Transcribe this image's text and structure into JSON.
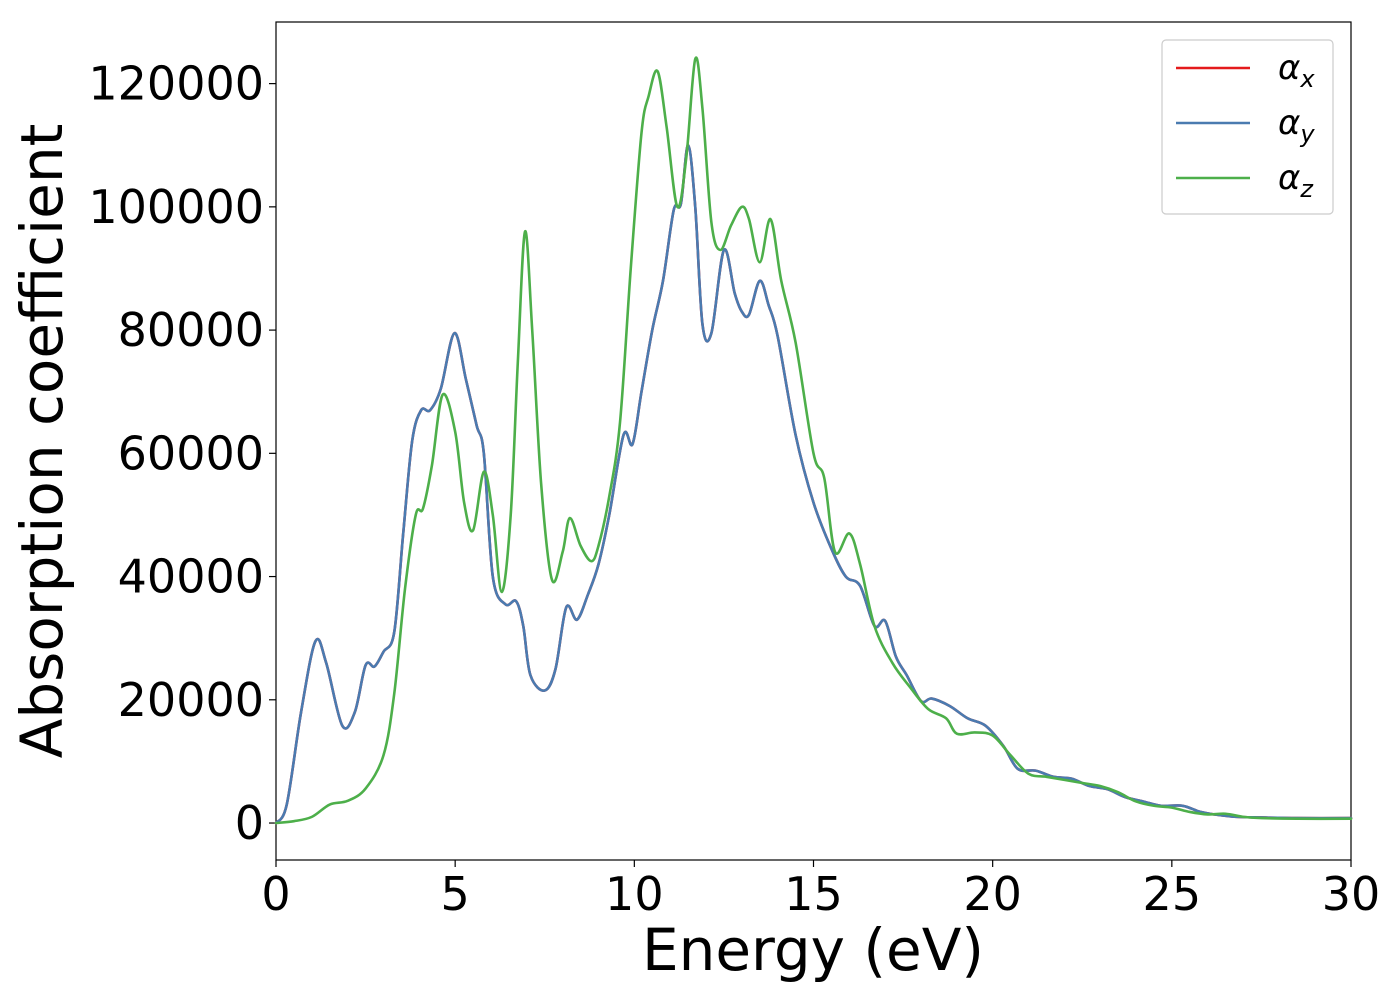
{
  "chart_data": {
    "type": "line",
    "title": "",
    "xlabel": "Energy (eV)",
    "ylabel": "Absorption coefficient",
    "xlim": [
      0,
      30
    ],
    "ylim": [
      -6000,
      130000
    ],
    "xticks": [
      0,
      5,
      10,
      15,
      20,
      25,
      30
    ],
    "yticks": [
      0,
      20000,
      40000,
      60000,
      80000,
      100000,
      120000
    ],
    "grid": false,
    "legend_position": "top-right",
    "series": [
      {
        "name": "α",
        "subscript": "x",
        "color": "#e41a1c",
        "x": [
          0,
          0.3,
          0.7,
          1.1,
          1.4,
          1.85,
          2.2,
          2.5,
          2.75,
          3.0,
          3.3,
          3.55,
          3.8,
          4.05,
          4.3,
          4.6,
          4.98,
          5.3,
          5.6,
          5.8,
          6.05,
          6.4,
          6.7,
          6.9,
          7.1,
          7.5,
          7.8,
          8.1,
          8.4,
          8.7,
          9.0,
          9.3,
          9.7,
          9.95,
          10.2,
          10.5,
          10.8,
          11.1,
          11.3,
          11.5,
          11.7,
          11.9,
          12.15,
          12.5,
          12.8,
          13.0,
          13.2,
          13.5,
          13.75,
          14.0,
          14.5,
          15.0,
          15.5,
          15.9,
          16.3,
          16.7,
          17.0,
          17.3,
          17.6,
          18.0,
          18.3,
          18.8,
          19.3,
          19.8,
          20.3,
          20.7,
          21.2,
          21.7,
          22.2,
          22.7,
          23.2,
          23.7,
          24.2,
          24.7,
          25.3,
          25.8,
          26.3,
          26.8,
          27.5,
          28.5,
          30.0
        ],
        "values": [
          0,
          3000,
          18000,
          29500,
          26000,
          15800,
          18000,
          25600,
          25400,
          27800,
          31000,
          47000,
          62000,
          67000,
          67000,
          70500,
          79500,
          72000,
          64500,
          60000,
          40000,
          35500,
          36000,
          32000,
          24000,
          21500,
          25000,
          35000,
          33000,
          37000,
          42000,
          50000,
          63000,
          61500,
          70000,
          80000,
          88000,
          99500,
          100500,
          110000,
          100000,
          81000,
          79500,
          93000,
          86000,
          83000,
          82500,
          88000,
          84000,
          79000,
          63000,
          52000,
          44500,
          40000,
          38500,
          32000,
          32800,
          27000,
          24000,
          19800,
          20200,
          19000,
          17000,
          15800,
          12500,
          8800,
          8500,
          7500,
          7200,
          6000,
          5500,
          4200,
          3500,
          2800,
          2800,
          1800,
          1300,
          1000,
          900,
          800,
          800
        ]
      },
      {
        "name": "α",
        "subscript": "y",
        "color": "#4a7bb0",
        "x": [
          0,
          0.3,
          0.7,
          1.1,
          1.4,
          1.85,
          2.2,
          2.5,
          2.75,
          3.0,
          3.3,
          3.55,
          3.8,
          4.05,
          4.3,
          4.6,
          4.98,
          5.3,
          5.6,
          5.8,
          6.05,
          6.4,
          6.7,
          6.9,
          7.1,
          7.5,
          7.8,
          8.1,
          8.4,
          8.7,
          9.0,
          9.3,
          9.7,
          9.95,
          10.2,
          10.5,
          10.8,
          11.1,
          11.3,
          11.5,
          11.7,
          11.9,
          12.15,
          12.5,
          12.8,
          13.0,
          13.2,
          13.5,
          13.75,
          14.0,
          14.5,
          15.0,
          15.5,
          15.9,
          16.3,
          16.7,
          17.0,
          17.3,
          17.6,
          18.0,
          18.3,
          18.8,
          19.3,
          19.8,
          20.3,
          20.7,
          21.2,
          21.7,
          22.2,
          22.7,
          23.2,
          23.7,
          24.2,
          24.7,
          25.3,
          25.8,
          26.3,
          26.8,
          27.5,
          28.5,
          30.0
        ],
        "values": [
          0,
          3000,
          18000,
          29500,
          26000,
          15800,
          18000,
          25600,
          25400,
          27800,
          31000,
          47000,
          62000,
          67000,
          67000,
          70500,
          79500,
          72000,
          64500,
          60000,
          40000,
          35500,
          36000,
          32000,
          24000,
          21500,
          25000,
          35000,
          33000,
          37000,
          42000,
          50000,
          63000,
          61500,
          70000,
          80000,
          88000,
          99500,
          100500,
          110000,
          100000,
          81000,
          79500,
          93000,
          86000,
          83000,
          82500,
          88000,
          84000,
          79000,
          63000,
          52000,
          44500,
          40000,
          38500,
          32000,
          32800,
          27000,
          24000,
          19800,
          20200,
          19000,
          17000,
          15800,
          12500,
          8800,
          8500,
          7500,
          7200,
          6000,
          5500,
          4200,
          3500,
          2800,
          2800,
          1800,
          1300,
          1000,
          900,
          800,
          800
        ]
      },
      {
        "name": "α",
        "subscript": "z",
        "color": "#4daf4a",
        "x": [
          0,
          0.5,
          1.0,
          1.5,
          2.0,
          2.5,
          3.0,
          3.3,
          3.6,
          3.9,
          4.1,
          4.35,
          4.65,
          5.0,
          5.25,
          5.5,
          5.8,
          6.05,
          6.3,
          6.55,
          6.75,
          6.95,
          7.15,
          7.4,
          7.7,
          8.0,
          8.2,
          8.5,
          8.8,
          9.0,
          9.3,
          9.6,
          9.9,
          10.2,
          10.4,
          10.65,
          10.9,
          11.2,
          11.45,
          11.7,
          11.9,
          12.15,
          12.4,
          12.7,
          13.0,
          13.2,
          13.5,
          13.8,
          14.1,
          14.5,
          15.0,
          15.3,
          15.6,
          16.0,
          16.3,
          16.7,
          17.2,
          17.7,
          18.2,
          18.7,
          19.0,
          19.5,
          20.0,
          20.5,
          21.0,
          21.5,
          22.0,
          22.5,
          23.0,
          23.5,
          24.0,
          24.5,
          25.0,
          25.5,
          26.0,
          26.5,
          27.0,
          27.5,
          28.5,
          30.0
        ],
        "values": [
          0,
          300,
          1000,
          3000,
          3600,
          5600,
          11000,
          21000,
          38000,
          50000,
          51000,
          58000,
          69500,
          63500,
          52000,
          47500,
          57000,
          50000,
          37500,
          50000,
          75000,
          96000,
          80000,
          55000,
          39500,
          44000,
          49500,
          45000,
          42500,
          45000,
          53000,
          65000,
          90000,
          112000,
          118000,
          122000,
          113000,
          100000,
          108000,
          124000,
          116000,
          97500,
          93000,
          97000,
          100000,
          98000,
          91000,
          98000,
          88000,
          78000,
          60000,
          56000,
          44000,
          47000,
          42000,
          32000,
          26000,
          22000,
          18500,
          17000,
          14500,
          14700,
          14200,
          11000,
          8000,
          7500,
          7000,
          6500,
          6000,
          5000,
          3500,
          2800,
          2500,
          1800,
          1400,
          1500,
          1000,
          800,
          700,
          700
        ]
      }
    ]
  }
}
